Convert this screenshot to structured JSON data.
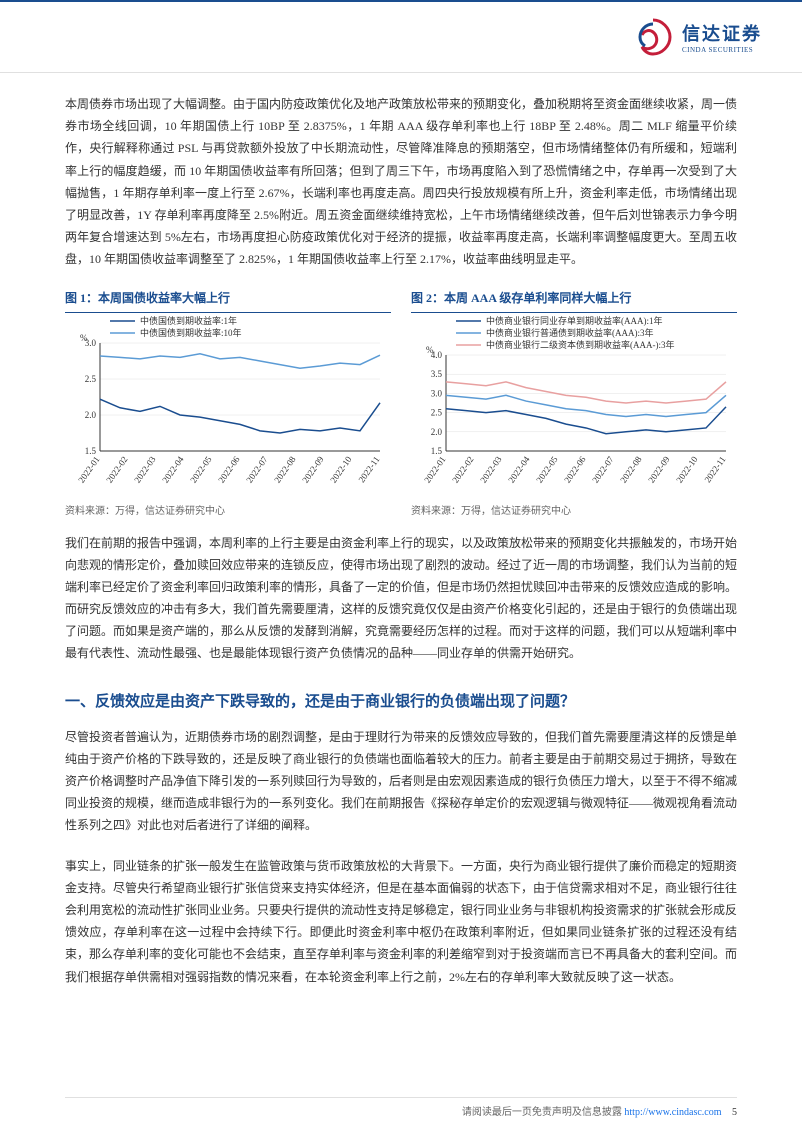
{
  "brand": {
    "name_cn": "信达证券",
    "name_en": "CINDA SECURITIES"
  },
  "para1": "本周债券市场出现了大幅调整。由于国内防疫政策优化及地产政策放松带来的预期变化，叠加税期将至资金面继续收紧，周一债券市场全线回调，10 年期国债上行 10BP 至 2.8375%，1 年期 AAA 级存单利率也上行 18BP 至 2.48%。周二 MLF 缩量平价续作，央行解释称通过 PSL 与再贷款额外投放了中长期流动性，尽管降准降息的预期落空，但市场情绪整体仍有所缓和，短端利率上行的幅度趋缓，而 10 年期国债收益率有所回落；但到了周三下午，市场再度陷入到了恐慌情绪之中，存单再一次受到了大幅抛售，1 年期存单利率一度上行至 2.67%，长端利率也再度走高。周四央行投放规模有所上升，资金利率走低，市场情绪出现了明显改善，1Y 存单利率再度降至 2.5%附近。周五资金面继续维持宽松，上午市场情绪继续改善，但午后刘世锦表示力争今明两年复合增速达到 5%左右，市场再度担心防疫政策优化对于经济的提振，收益率再度走高，长端利率调整幅度更大。至周五收盘，10 年期国债收益率调整至了 2.825%，1 年期国债收益率上行至 2.17%，收益率曲线明显走平。",
  "chart1": {
    "title": "图 1：本周国债收益率大幅上行",
    "source": "资料来源：万得，信达证券研究中心",
    "ylabel": "%",
    "xticks": [
      "2022-01",
      "2022-02",
      "2022-03",
      "2022-04",
      "2022-05",
      "2022-06",
      "2022-07",
      "2022-08",
      "2022-09",
      "2022-10",
      "2022-11"
    ],
    "ylim": [
      1.5,
      3.0
    ],
    "yticks": [
      1.5,
      2.0,
      2.5,
      3.0
    ],
    "series": [
      {
        "name": "中债国债到期收益率:1年",
        "color": "#1a4d8f",
        "values": [
          2.22,
          2.1,
          2.05,
          2.12,
          2.0,
          1.97,
          1.92,
          1.87,
          1.78,
          1.75,
          1.8,
          1.78,
          1.82,
          1.78,
          2.17
        ]
      },
      {
        "name": "中债国债到期收益率:10年",
        "color": "#5b9bd5",
        "values": [
          2.82,
          2.8,
          2.78,
          2.82,
          2.8,
          2.85,
          2.78,
          2.8,
          2.75,
          2.7,
          2.65,
          2.68,
          2.72,
          2.7,
          2.83
        ]
      }
    ],
    "background_color": "#ffffff",
    "grid_color": "#e0e0e0",
    "axis_fontsize": 9,
    "legend_fontsize": 9
  },
  "chart2": {
    "title": "图 2：本周 AAA 级存单利率同样大幅上行",
    "source": "资料来源：万得，信达证券研究中心",
    "ylabel": "%",
    "xticks": [
      "2022-01",
      "2022-02",
      "2022-03",
      "2022-04",
      "2022-05",
      "2022-06",
      "2022-07",
      "2022-08",
      "2022-09",
      "2022-10",
      "2022-11"
    ],
    "ylim": [
      1.5,
      4.0
    ],
    "yticks": [
      1.5,
      2.0,
      2.5,
      3.0,
      3.5,
      4.0
    ],
    "series": [
      {
        "name": "中债商业银行同业存单到期收益率(AAA):1年",
        "color": "#1a4d8f",
        "values": [
          2.6,
          2.55,
          2.5,
          2.55,
          2.45,
          2.35,
          2.2,
          2.1,
          1.95,
          2.0,
          2.05,
          2.0,
          2.05,
          2.1,
          2.65
        ]
      },
      {
        "name": "中债商业银行普通债到期收益率(AAA):3年",
        "color": "#5b9bd5",
        "values": [
          2.95,
          2.9,
          2.85,
          2.95,
          2.8,
          2.7,
          2.6,
          2.55,
          2.45,
          2.4,
          2.45,
          2.4,
          2.45,
          2.5,
          2.95
        ]
      },
      {
        "name": "中债商业银行二级资本债到期收益率(AAA-):3年",
        "color": "#e8a0a0",
        "values": [
          3.3,
          3.25,
          3.2,
          3.3,
          3.15,
          3.05,
          2.95,
          2.9,
          2.8,
          2.75,
          2.8,
          2.75,
          2.8,
          2.85,
          3.3
        ]
      }
    ],
    "background_color": "#ffffff",
    "grid_color": "#e0e0e0",
    "axis_fontsize": 9,
    "legend_fontsize": 9
  },
  "para2": "我们在前期的报告中强调，本周利率的上行主要是由资金利率上行的现实，以及政策放松带来的预期变化共振触发的，市场开始向悲观的情形定价，叠加赎回效应带来的连锁反应，使得市场出现了剧烈的波动。经过了近一周的市场调整，我们认为当前的短端利率已经定价了资金利率回归政策利率的情形，具备了一定的价值，但是市场仍然担忧赎回冲击带来的反馈效应造成的影响。而研究反馈效应的冲击有多大，我们首先需要厘清，这样的反馈究竟仅仅是由资产价格变化引起的，还是由于银行的负债端出现了问题。而如果是资产端的，那么从反馈的发酵到消解，究竟需要经历怎样的过程。而对于这样的问题，我们可以从短端利率中最有代表性、流动性最强、也是最能体现银行资产负债情况的品种——同业存单的供需开始研究。",
  "heading1": "一、反馈效应是由资产下跌导致的，还是由于商业银行的负债端出现了问题？",
  "para3": "尽管投资者普遍认为，近期债券市场的剧烈调整，是由于理财行为带来的反馈效应导致的，但我们首先需要厘清这样的反馈是单纯由于资产价格的下跌导致的，还是反映了商业银行的负债端也面临着较大的压力。前者主要是由于前期交易过于拥挤，导致在资产价格调整时产品净值下降引发的一系列赎回行为导致的，后者则是由宏观因素造成的银行负债压力增大，以至于不得不缩减同业投资的规模，继而造成非银行为的一系列变化。我们在前期报告《探秘存单定价的宏观逻辑与微观特征——微观视角看流动性系列之四》对此也对后者进行了详细的阐释。",
  "para4": "事实上，同业链条的扩张一般发生在监管政策与货币政策放松的大背景下。一方面，央行为商业银行提供了廉价而稳定的短期资金支持。尽管央行希望商业银行扩张信贷来支持实体经济，但是在基本面偏弱的状态下，由于信贷需求相对不足，商业银行往往会利用宽松的流动性扩张同业业务。只要央行提供的流动性支持足够稳定，银行同业业务与非银机构投资需求的扩张就会形成反馈效应，存单利率在这一过程中会持续下行。即便此时资金利率中枢仍在政策利率附近，但如果同业链条扩张的过程还没有结束，那么存单利率的变化可能也不会结束，直至存单利率与资金利率的利差缩窄到对于投资端而言已不再具备大的套利空间。而我们根据存单供需相对强弱指数的情况来看，在本轮资金利率上行之前，2%左右的存单利率大致就反映了这一状态。",
  "footer": {
    "text": "请阅读最后一页免责声明及信息披露 ",
    "url": "http://www.cindasc.com",
    "page": "5"
  }
}
